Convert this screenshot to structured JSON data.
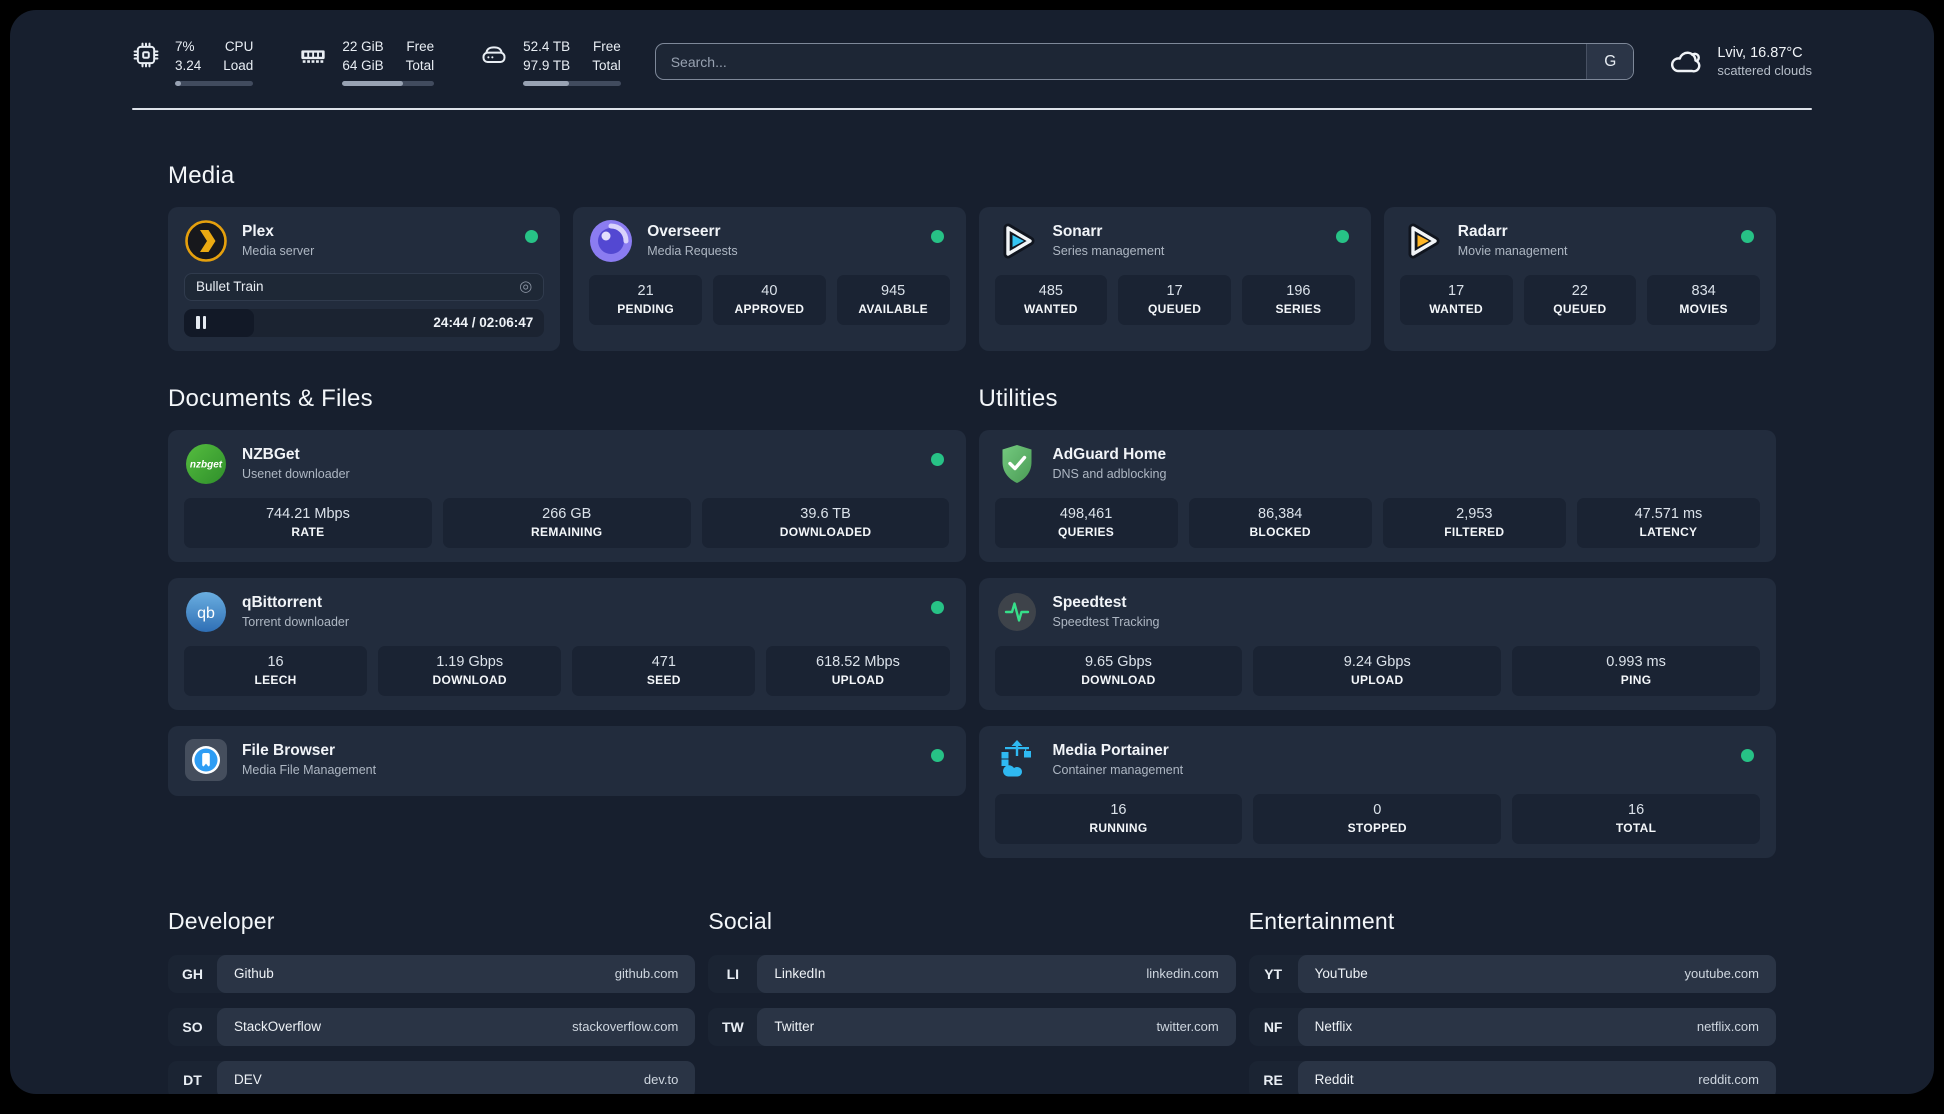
{
  "topbar": {
    "cpu": {
      "value_top": "7%",
      "value_bottom": "3.24",
      "label_top": "CPU",
      "label_bottom": "Load",
      "progress": 8
    },
    "ram": {
      "value_top": "22 GiB",
      "value_bottom": "64 GiB",
      "label_top": "Free",
      "label_bottom": "Total",
      "progress": 66
    },
    "disk": {
      "value_top": "52.4 TB",
      "value_bottom": "97.9 TB",
      "label_top": "Free",
      "label_bottom": "Total",
      "progress": 47
    },
    "search": {
      "placeholder": "Search...",
      "button": "G"
    },
    "weather": {
      "line1": "Lviv, 16.87°C",
      "line2": "scattered clouds"
    }
  },
  "colors": {
    "status_online": "#27c286",
    "card": "#222c3d",
    "background": "#171f2e"
  },
  "media": {
    "title": "Media",
    "plex": {
      "name": "Plex",
      "desc": "Media server",
      "now_playing": {
        "title": "Bullet Train",
        "time": "24:44 / 02:06:47"
      }
    },
    "overseerr": {
      "name": "Overseerr",
      "desc": "Media Requests",
      "stats": [
        {
          "value": "21",
          "label": "PENDING"
        },
        {
          "value": "40",
          "label": "APPROVED"
        },
        {
          "value": "945",
          "label": "AVAILABLE"
        }
      ]
    },
    "sonarr": {
      "name": "Sonarr",
      "desc": "Series management",
      "stats": [
        {
          "value": "485",
          "label": "WANTED"
        },
        {
          "value": "17",
          "label": "QUEUED"
        },
        {
          "value": "196",
          "label": "SERIES"
        }
      ]
    },
    "radarr": {
      "name": "Radarr",
      "desc": "Movie management",
      "stats": [
        {
          "value": "17",
          "label": "WANTED"
        },
        {
          "value": "22",
          "label": "QUEUED"
        },
        {
          "value": "834",
          "label": "MOVIES"
        }
      ]
    }
  },
  "documents": {
    "title": "Documents & Files",
    "nzbget": {
      "name": "NZBGet",
      "desc": "Usenet downloader",
      "stats": [
        {
          "value": "744.21 Mbps",
          "label": "RATE"
        },
        {
          "value": "266 GB",
          "label": "REMAINING"
        },
        {
          "value": "39.6 TB",
          "label": "DOWNLOADED"
        }
      ]
    },
    "qbittorrent": {
      "name": "qBittorrent",
      "desc": "Torrent downloader",
      "stats": [
        {
          "value": "16",
          "label": "LEECH"
        },
        {
          "value": "1.19 Gbps",
          "label": "DOWNLOAD"
        },
        {
          "value": "471",
          "label": "SEED"
        },
        {
          "value": "618.52 Mbps",
          "label": "UPLOAD"
        }
      ]
    },
    "filebrowser": {
      "name": "File Browser",
      "desc": "Media File Management"
    }
  },
  "utilities": {
    "title": "Utilities",
    "adguard": {
      "name": "AdGuard Home",
      "desc": "DNS and adblocking",
      "stats": [
        {
          "value": "498,461",
          "label": "QUERIES"
        },
        {
          "value": "86,384",
          "label": "BLOCKED"
        },
        {
          "value": "2,953",
          "label": "FILTERED"
        },
        {
          "value": "47.571 ms",
          "label": "LATENCY"
        }
      ]
    },
    "speedtest": {
      "name": "Speedtest",
      "desc": "Speedtest Tracking",
      "stats": [
        {
          "value": "9.65 Gbps",
          "label": "DOWNLOAD"
        },
        {
          "value": "9.24 Gbps",
          "label": "UPLOAD"
        },
        {
          "value": "0.993 ms",
          "label": "PING"
        }
      ]
    },
    "portainer": {
      "name": "Media Portainer",
      "desc": "Container management",
      "stats": [
        {
          "value": "16",
          "label": "RUNNING"
        },
        {
          "value": "0",
          "label": "STOPPED"
        },
        {
          "value": "16",
          "label": "TOTAL"
        }
      ]
    }
  },
  "links": {
    "developer": {
      "title": "Developer",
      "items": [
        {
          "tag": "GH",
          "name": "Github",
          "url": "github.com"
        },
        {
          "tag": "SO",
          "name": "StackOverflow",
          "url": "stackoverflow.com"
        },
        {
          "tag": "DT",
          "name": "DEV",
          "url": "dev.to"
        }
      ]
    },
    "social": {
      "title": "Social",
      "items": [
        {
          "tag": "LI",
          "name": "LinkedIn",
          "url": "linkedin.com"
        },
        {
          "tag": "TW",
          "name": "Twitter",
          "url": "twitter.com"
        }
      ]
    },
    "entertainment": {
      "title": "Entertainment",
      "items": [
        {
          "tag": "YT",
          "name": "YouTube",
          "url": "youtube.com"
        },
        {
          "tag": "NF",
          "name": "Netflix",
          "url": "netflix.com"
        },
        {
          "tag": "RE",
          "name": "Reddit",
          "url": "reddit.com"
        }
      ]
    }
  }
}
